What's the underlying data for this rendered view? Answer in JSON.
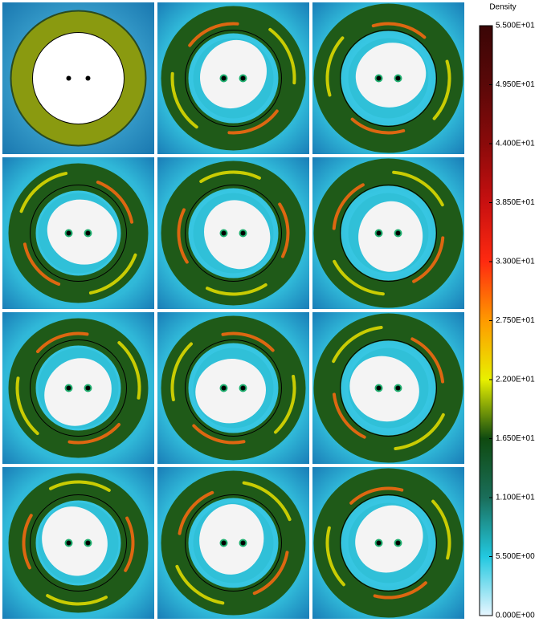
{
  "chart_data": {
    "type": "colorbar",
    "title": "Density",
    "zlim": [
      0,
      55
    ],
    "zticks": [
      {
        "value": 0,
        "label": "0.000E+00"
      },
      {
        "value": 5.5,
        "label": "5.500E+00"
      },
      {
        "value": 11,
        "label": "1.100E+01"
      },
      {
        "value": 16.5,
        "label": "1.650E+01"
      },
      {
        "value": 22,
        "label": "2.200E+01"
      },
      {
        "value": 27.5,
        "label": "2.750E+01"
      },
      {
        "value": 33,
        "label": "3.300E+01"
      },
      {
        "value": 38.5,
        "label": "3.850E+01"
      },
      {
        "value": 44,
        "label": "4.400E+01"
      },
      {
        "value": 49.5,
        "label": "4.950E+01"
      },
      {
        "value": 55,
        "label": "5.500E+01"
      }
    ],
    "colormap": [
      "#e8f6ff",
      "#22c8e0",
      "#1a6e5a",
      "#0f4a10",
      "#e8f000",
      "#ff9a00",
      "#ff2a10",
      "#c81010",
      "#8a0a0a",
      "#5a0808",
      "#3a0606"
    ]
  }
}
